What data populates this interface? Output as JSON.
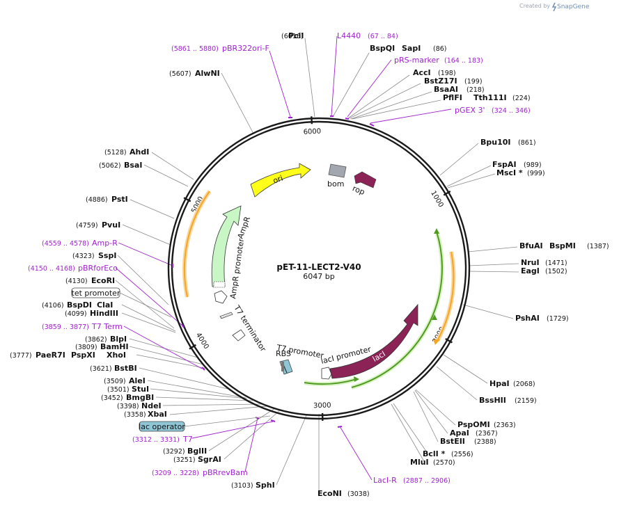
{
  "brand": {
    "prefix": "Created by",
    "name": "SnapGene"
  },
  "plasmid": {
    "name": "pET-11-LECT2-V40",
    "size_label": "6047 bp",
    "total_bp": 6047
  },
  "ticks": [
    {
      "bp": 1000,
      "label": "1000"
    },
    {
      "bp": 2000,
      "label": "2000"
    },
    {
      "bp": 3000,
      "label": "3000"
    },
    {
      "bp": 4000,
      "label": "4000"
    },
    {
      "bp": 5000,
      "label": "5000"
    },
    {
      "bp": 6000,
      "label": "6000"
    }
  ],
  "map_features": {
    "ori": "ori",
    "bom": "bom",
    "rop": "rop",
    "ampr": "AmpR",
    "ampr_promoter": "AmpR promoter",
    "t7_terminator": "T7 terminator",
    "t7_promoter": "T7 promoter",
    "rbs": "RBS",
    "laci_promoter": "lacI promoter",
    "laci": "lacI"
  },
  "callouts": {
    "tet_promoter": "tet promoter",
    "lac_operator": "lac operator"
  },
  "sites": [
    {
      "id": "pcii",
      "name": "PciI",
      "coord": "(6016)"
    },
    {
      "id": "bspqi",
      "name": "BspQI",
      "name2": "SapI",
      "coord": "(86)"
    },
    {
      "id": "acci",
      "name": "AccI",
      "coord": "(198)"
    },
    {
      "id": "bstz17i",
      "name": "BstZ17I",
      "coord": "(199)"
    },
    {
      "id": "bsaai",
      "name": "BsaAI",
      "coord": "(218)"
    },
    {
      "id": "pflfi",
      "name": "PflFI",
      "name2": "Tth111I",
      "coord": "(224)"
    },
    {
      "id": "bpu10i",
      "name": "Bpu10I",
      "coord": "(861)"
    },
    {
      "id": "fspai",
      "name": "FspAI",
      "coord": "(989)"
    },
    {
      "id": "msci",
      "name": "MscI *",
      "coord": "(999)"
    },
    {
      "id": "bfuai",
      "name": "BfuAI",
      "name2": "BspMI",
      "coord": "(1387)"
    },
    {
      "id": "nrui",
      "name": "NruI",
      "coord": "(1471)"
    },
    {
      "id": "eagi",
      "name": "EagI",
      "coord": "(1502)"
    },
    {
      "id": "pshai",
      "name": "PshAI",
      "coord": "(1729)"
    },
    {
      "id": "hpai",
      "name": "HpaI",
      "coord": "(2068)"
    },
    {
      "id": "bsshii",
      "name": "BssHII",
      "coord": "(2159)"
    },
    {
      "id": "psppmi",
      "name": "PspOMI",
      "coord": "(2363)"
    },
    {
      "id": "apai",
      "name": "ApaI",
      "coord": "(2367)"
    },
    {
      "id": "bsteii",
      "name": "BstEII",
      "coord": "(2388)"
    },
    {
      "id": "bcli",
      "name": "BclI *",
      "coord": "(2556)"
    },
    {
      "id": "mlui",
      "name": "MluI",
      "coord": "(2570)"
    },
    {
      "id": "econi",
      "name": "EcoNI",
      "coord": "(3038)"
    },
    {
      "id": "sphi",
      "name": "SphI",
      "coord": "(3103)"
    },
    {
      "id": "sgrai",
      "name": "SgrAI",
      "coord": "(3251)"
    },
    {
      "id": "bglii",
      "name": "BglII",
      "coord": "(3292)"
    },
    {
      "id": "xbai",
      "name": "XbaI",
      "coord": "(3358)"
    },
    {
      "id": "ndei",
      "name": "NdeI",
      "coord": "(3398)"
    },
    {
      "id": "bmgbi",
      "name": "BmgBI",
      "coord": "(3452)"
    },
    {
      "id": "stui",
      "name": "StuI",
      "coord": "(3501)"
    },
    {
      "id": "alei",
      "name": "AleI",
      "coord": "(3509)"
    },
    {
      "id": "bstbi",
      "name": "BstBI",
      "coord": "(3621)"
    },
    {
      "id": "paer7i",
      "name": "PaeR7I",
      "name2": "PspXI",
      "name3": "XhoI",
      "coord": "(3777)"
    },
    {
      "id": "bamhi",
      "name": "BamHI",
      "coord": "(3809)"
    },
    {
      "id": "blpi",
      "name": "BlpI",
      "coord": "(3862)"
    },
    {
      "id": "hindiii",
      "name": "HindIII",
      "coord": "(4099)"
    },
    {
      "id": "bspdi",
      "name": "BspDI",
      "name2": "ClaI",
      "coord": "(4106)"
    },
    {
      "id": "ecori",
      "name": "EcoRI",
      "coord": "(4130)"
    },
    {
      "id": "sspi",
      "name": "SspI",
      "coord": "(4323)"
    },
    {
      "id": "pvui",
      "name": "PvuI",
      "coord": "(4759)"
    },
    {
      "id": "psti",
      "name": "PstI",
      "coord": "(4886)"
    },
    {
      "id": "bsai",
      "name": "BsaI",
      "coord": "(5062)"
    },
    {
      "id": "ahdi",
      "name": "AhdI",
      "coord": "(5128)"
    },
    {
      "id": "alwni",
      "name": "AlwNI",
      "coord": "(5607)"
    }
  ],
  "primers": [
    {
      "id": "l4440",
      "name": "L4440",
      "coord": "(67 .. 84)"
    },
    {
      "id": "prsmarker",
      "name": "pRS-marker",
      "coord": "(164 .. 183)"
    },
    {
      "id": "pgex3",
      "name": "pGEX 3'",
      "coord": "(324 .. 346)"
    },
    {
      "id": "pbr322ori",
      "name": "pBR322ori-F",
      "coord": "(5861 .. 5880)"
    },
    {
      "id": "ampr_p",
      "name": "Amp-R",
      "coord": "(4559 .. 4578)"
    },
    {
      "id": "pbrforeco",
      "name": "pBRforEco",
      "coord": "(4150 .. 4168)"
    },
    {
      "id": "t7term",
      "name": "T7 Term",
      "coord": "(3859 .. 3877)"
    },
    {
      "id": "t7",
      "name": "T7",
      "coord": "(3312 .. 3331)"
    },
    {
      "id": "pbrrevbam",
      "name": "pBRrevBam",
      "coord": "(3209 .. 3228)"
    },
    {
      "id": "lacir",
      "name": "LacI-R",
      "coord": "(2887 .. 2906)"
    }
  ],
  "colors": {
    "backbone": "#1a1a1a",
    "ori": "#ffff1a",
    "ampr": "#c8f7c5",
    "laci": "#8b2356",
    "rop": "#8b2356",
    "bom": "#a3a8b0",
    "orf_orange": "#f5a623",
    "orf_green": "#6bbf2a",
    "primer": "#a020d0",
    "lac_operator": "#8fc6d6"
  }
}
